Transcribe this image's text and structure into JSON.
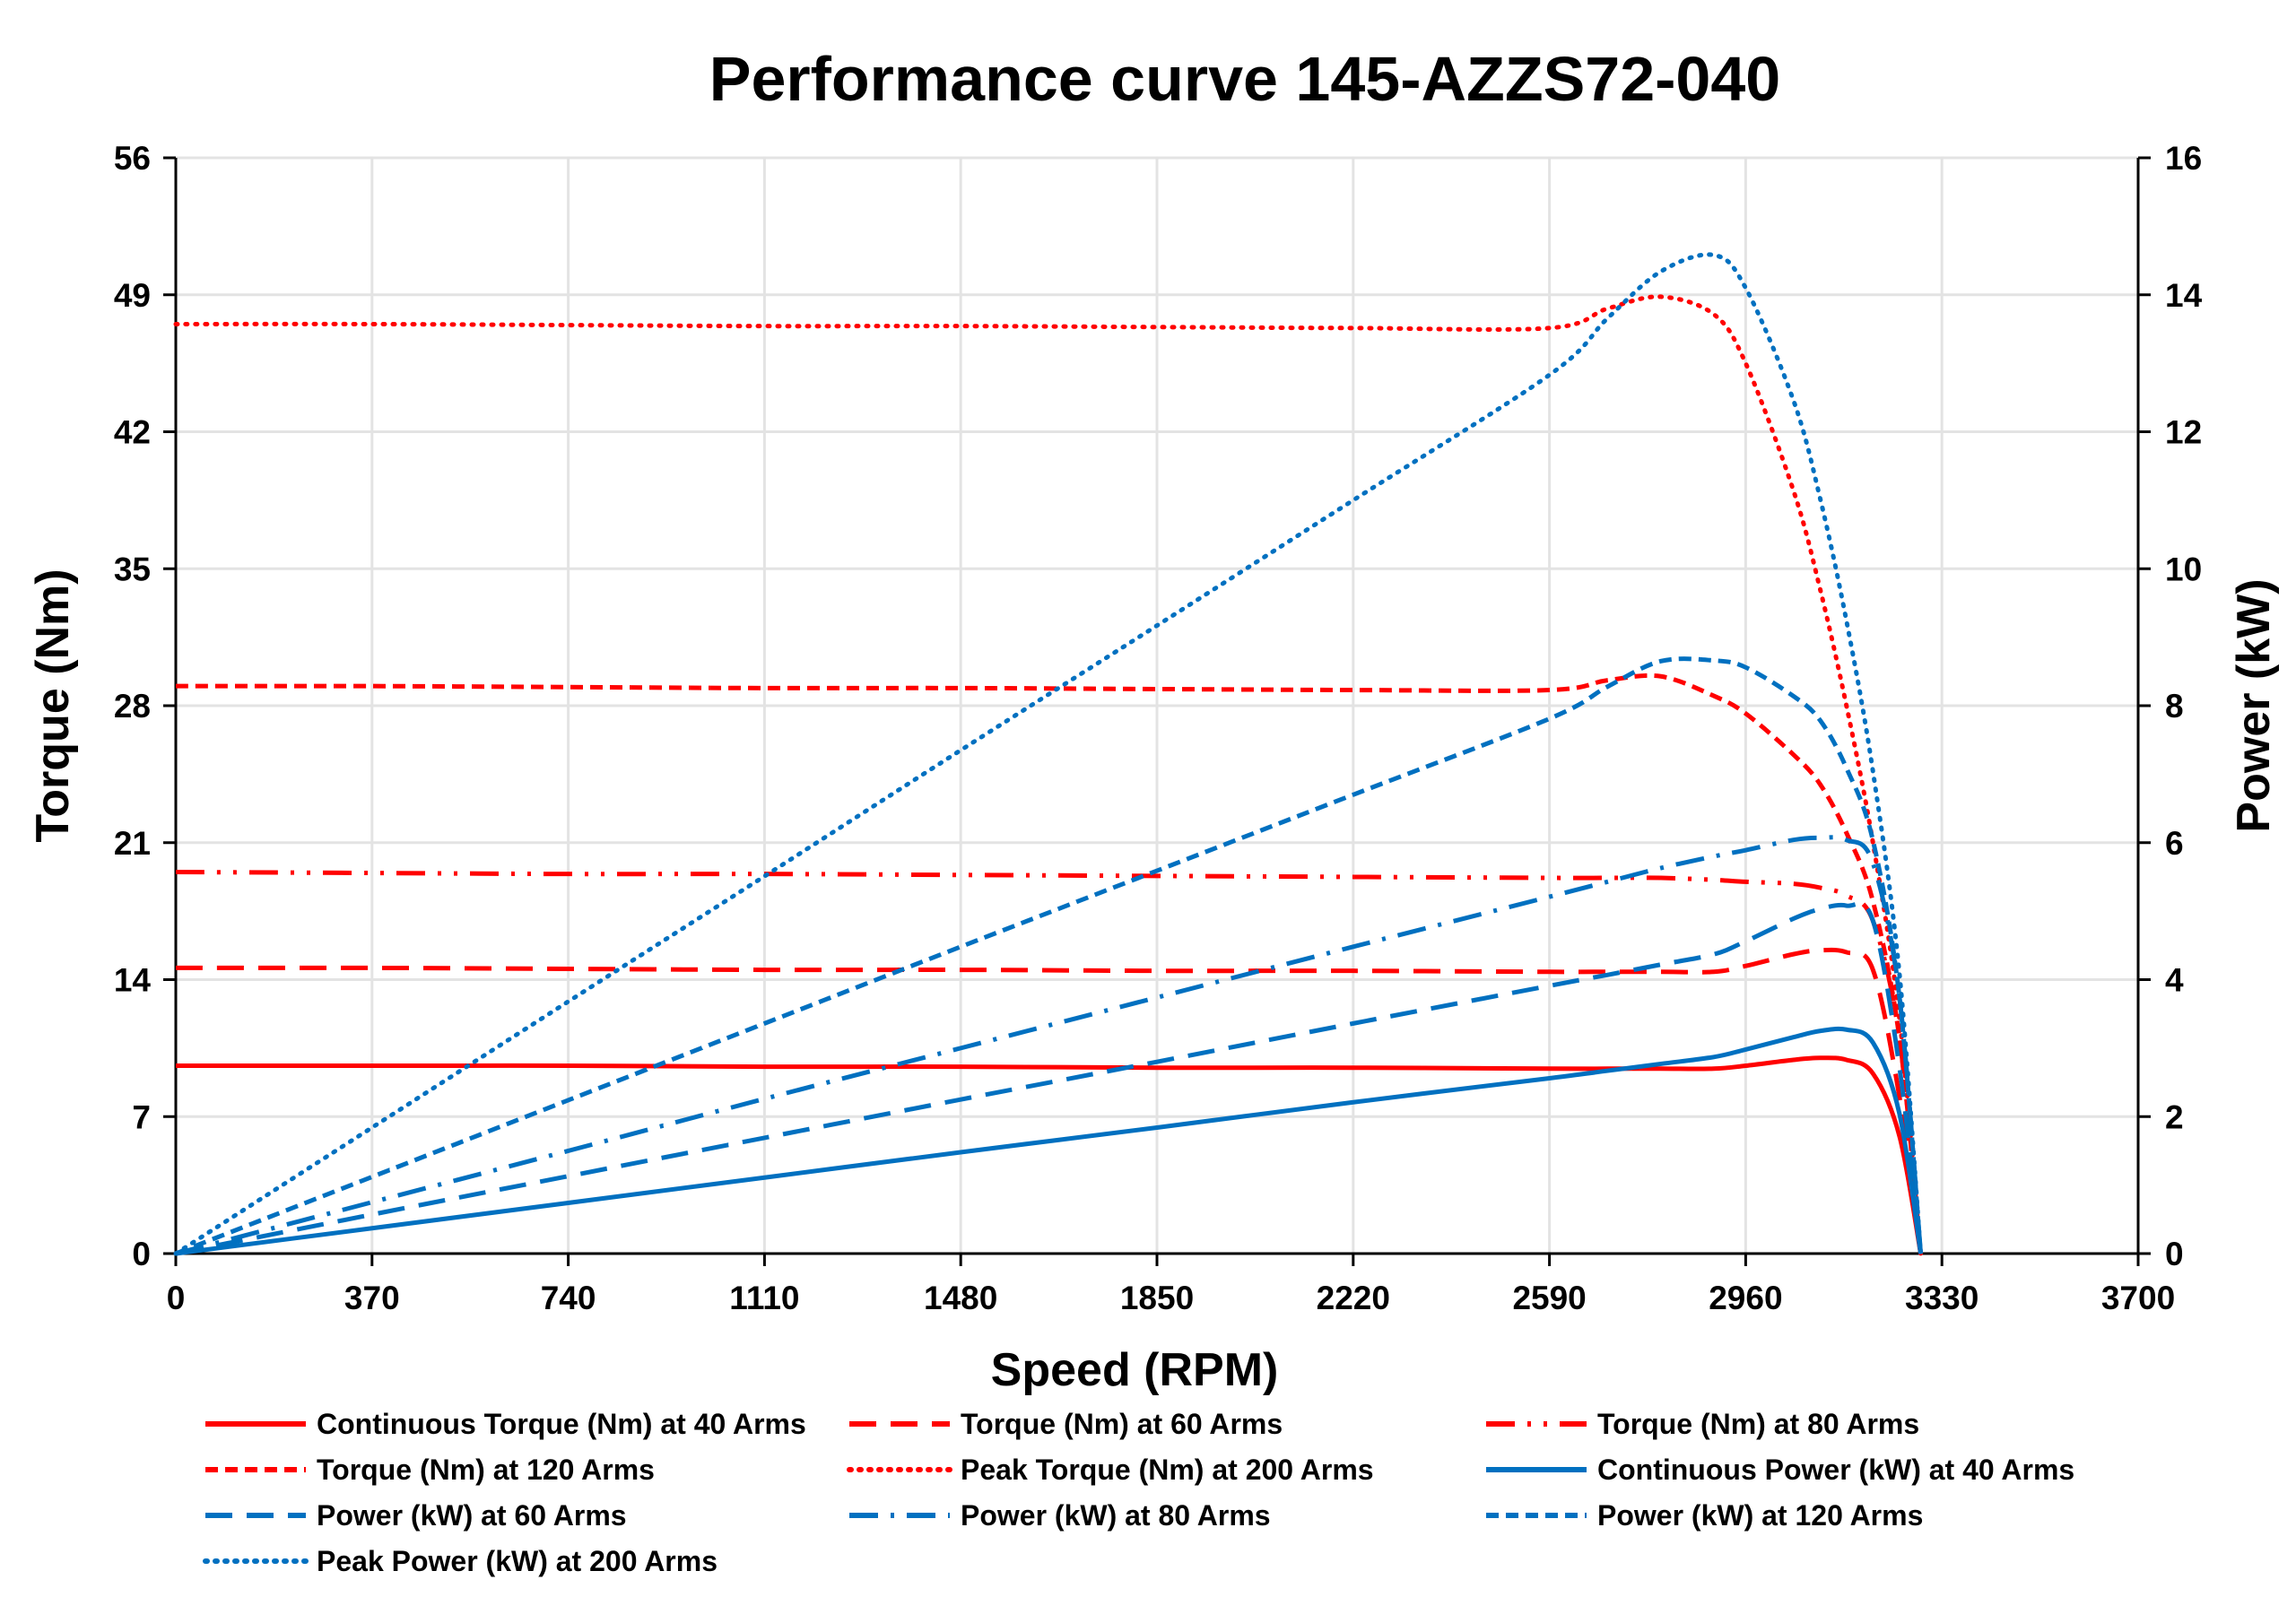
{
  "chart_data": {
    "type": "line",
    "title": "Performance curve 145-AZZS72-040",
    "xlabel": "Speed (RPM)",
    "ylabel": "Torque (Nm)",
    "y2label": "Power (kW)",
    "xlim": [
      0,
      3700
    ],
    "ylim": [
      0,
      56
    ],
    "y2lim": [
      0,
      16
    ],
    "xticks": [
      0,
      370,
      740,
      1110,
      1480,
      1850,
      2220,
      2590,
      2960,
      3330,
      3700
    ],
    "yticks": [
      0,
      7,
      14,
      21,
      28,
      35,
      42,
      49,
      56
    ],
    "y2ticks": [
      0,
      2,
      4,
      6,
      8,
      10,
      12,
      14,
      16
    ],
    "grid": true,
    "legend_position": "bottom",
    "colors": {
      "torque": "#ff0000",
      "power": "#0070c0"
    },
    "x": [
      0,
      370,
      740,
      1110,
      1480,
      1850,
      2220,
      2590,
      2700,
      2800,
      2900,
      2960,
      3050,
      3100,
      3150,
      3200,
      3250,
      3290
    ],
    "series": [
      {
        "name": "Continuous Torque (Nm) at 40 Arms",
        "axis": "left",
        "color": "#ff0000",
        "style": "solid",
        "values": [
          9.6,
          9.6,
          9.6,
          9.55,
          9.55,
          9.5,
          9.5,
          9.45,
          9.45,
          9.45,
          9.45,
          9.6,
          9.9,
          10.0,
          9.9,
          9.2,
          6.0,
          0
        ]
      },
      {
        "name": "Torque (Nm) at 60 Arms",
        "axis": "left",
        "color": "#ff0000",
        "style": "longdash",
        "values": [
          14.6,
          14.6,
          14.55,
          14.5,
          14.5,
          14.45,
          14.45,
          14.4,
          14.4,
          14.4,
          14.4,
          14.7,
          15.3,
          15.5,
          15.4,
          14.5,
          8.0,
          0
        ]
      },
      {
        "name": "Torque (Nm) at 80 Arms",
        "axis": "left",
        "color": "#ff0000",
        "style": "dashdotdot",
        "values": [
          19.5,
          19.45,
          19.4,
          19.4,
          19.35,
          19.3,
          19.25,
          19.2,
          19.2,
          19.2,
          19.1,
          19.0,
          18.9,
          18.7,
          18.3,
          17.0,
          11.0,
          0
        ]
      },
      {
        "name": "Torque (Nm) at 120 Arms",
        "axis": "left",
        "color": "#ff0000",
        "style": "dash",
        "values": [
          29.0,
          29.0,
          28.95,
          28.9,
          28.9,
          28.85,
          28.8,
          28.8,
          29.3,
          29.5,
          28.5,
          27.6,
          25.5,
          24.0,
          21.5,
          18.0,
          11.0,
          0
        ]
      },
      {
        "name": "Peak Torque (Nm) at 200 Arms",
        "axis": "left",
        "color": "#ff0000",
        "style": "dot",
        "values": [
          47.5,
          47.5,
          47.45,
          47.4,
          47.4,
          47.35,
          47.3,
          47.3,
          48.3,
          48.9,
          48.0,
          45.5,
          39.0,
          34.0,
          28.0,
          21.0,
          12.0,
          0
        ]
      },
      {
        "name": "Continuous Power (kW) at 40 Arms",
        "axis": "right",
        "color": "#0070c0",
        "style": "solid",
        "values": [
          0,
          0.37,
          0.74,
          1.11,
          1.48,
          1.84,
          2.21,
          2.56,
          2.67,
          2.77,
          2.87,
          2.98,
          3.16,
          3.25,
          3.27,
          3.08,
          2.04,
          0
        ]
      },
      {
        "name": "Power (kW) at 60 Arms",
        "axis": "right",
        "color": "#0070c0",
        "style": "longdash",
        "values": [
          0,
          0.57,
          1.13,
          1.69,
          2.25,
          2.8,
          3.36,
          3.91,
          4.07,
          4.22,
          4.37,
          4.56,
          4.89,
          5.03,
          5.08,
          4.86,
          2.72,
          0
        ]
      },
      {
        "name": "Power (kW) at 80 Arms",
        "axis": "right",
        "color": "#0070c0",
        "style": "dashdot",
        "values": [
          0,
          0.75,
          1.5,
          2.26,
          3.0,
          3.74,
          4.48,
          5.21,
          5.43,
          5.63,
          5.8,
          5.89,
          6.04,
          6.07,
          6.04,
          5.7,
          3.74,
          0
        ]
      },
      {
        "name": "Power (kW) at 120 Arms",
        "axis": "right",
        "color": "#0070c0",
        "style": "dash",
        "values": [
          0,
          1.12,
          2.24,
          3.36,
          4.48,
          5.59,
          6.7,
          7.81,
          8.28,
          8.65,
          8.66,
          8.56,
          8.14,
          7.79,
          7.09,
          6.03,
          3.74,
          0
        ]
      },
      {
        "name": "Peak Power (kW) at 200 Arms",
        "axis": "right",
        "color": "#0070c0",
        "style": "dot",
        "values": [
          0,
          1.84,
          3.68,
          5.51,
          7.35,
          9.17,
          11.0,
          12.83,
          13.66,
          14.34,
          14.58,
          14.1,
          12.46,
          11.04,
          9.24,
          7.04,
          4.08,
          0
        ]
      }
    ]
  }
}
